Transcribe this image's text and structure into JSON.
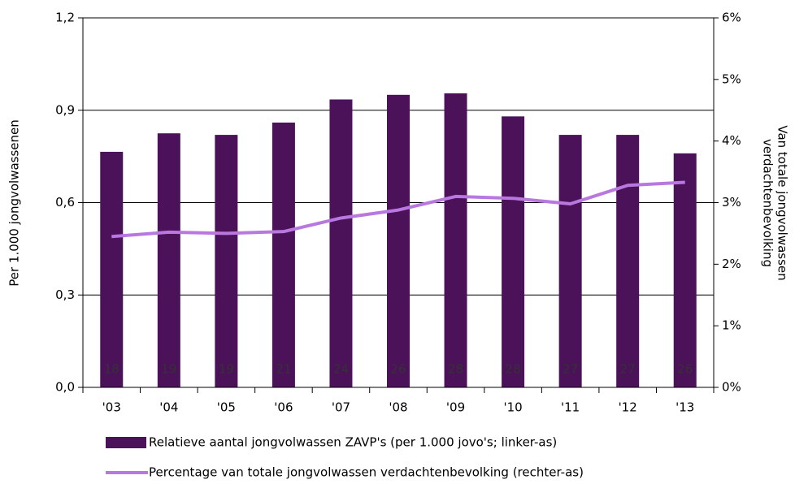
{
  "chart_data": {
    "type": "bar_line",
    "categories": [
      "'03",
      "'04",
      "'05",
      "'06",
      "'07",
      "'08",
      "'09",
      "'10",
      "'11",
      "'12",
      "'13"
    ],
    "series": [
      {
        "name": "Relatieve aantal jongvolwassen ZAVP's (per 1.000 jovo's; linker-as)",
        "color": "#4b1259",
        "type": "bar",
        "values": [
          0.765,
          0.825,
          0.82,
          0.86,
          0.935,
          0.95,
          0.955,
          0.88,
          0.82,
          0.82,
          0.76
        ]
      },
      {
        "name": "Percentage van totale jongvolwassen verdachtenbevolking (rechter-as)",
        "color": "#b977e0",
        "type": "line",
        "axis": "y2",
        "values": [
          2.45,
          2.52,
          2.5,
          2.53,
          2.75,
          2.88,
          3.1,
          3.07,
          2.98,
          3.28,
          3.33
        ]
      }
    ],
    "bar_labels": [
      18,
      19,
      19,
      21,
      24,
      26,
      28,
      28,
      27,
      27,
      26
    ],
    "ylabel": "Per 1.000 jongvolwassenen",
    "y2label": [
      "Van totale jongvolwassen",
      "verdachtenbevolking"
    ],
    "ylim": [
      0,
      1.2
    ],
    "yticks": [
      {
        "value": 0,
        "label": "0,0"
      },
      {
        "value": 0.3,
        "label": "0,3"
      },
      {
        "value": 0.6,
        "label": "0,6"
      },
      {
        "value": 0.9,
        "label": "0,9"
      },
      {
        "value": 1.2,
        "label": "1,2"
      }
    ],
    "y2lim": [
      0,
      6
    ],
    "y2ticks": [
      {
        "value": 0,
        "label": "0%"
      },
      {
        "value": 1,
        "label": "1%"
      },
      {
        "value": 2,
        "label": "2%"
      },
      {
        "value": 3,
        "label": "3%"
      },
      {
        "value": 4,
        "label": "4%"
      },
      {
        "value": 5,
        "label": "5%"
      },
      {
        "value": 6,
        "label": "6%"
      }
    ],
    "grid": true
  }
}
